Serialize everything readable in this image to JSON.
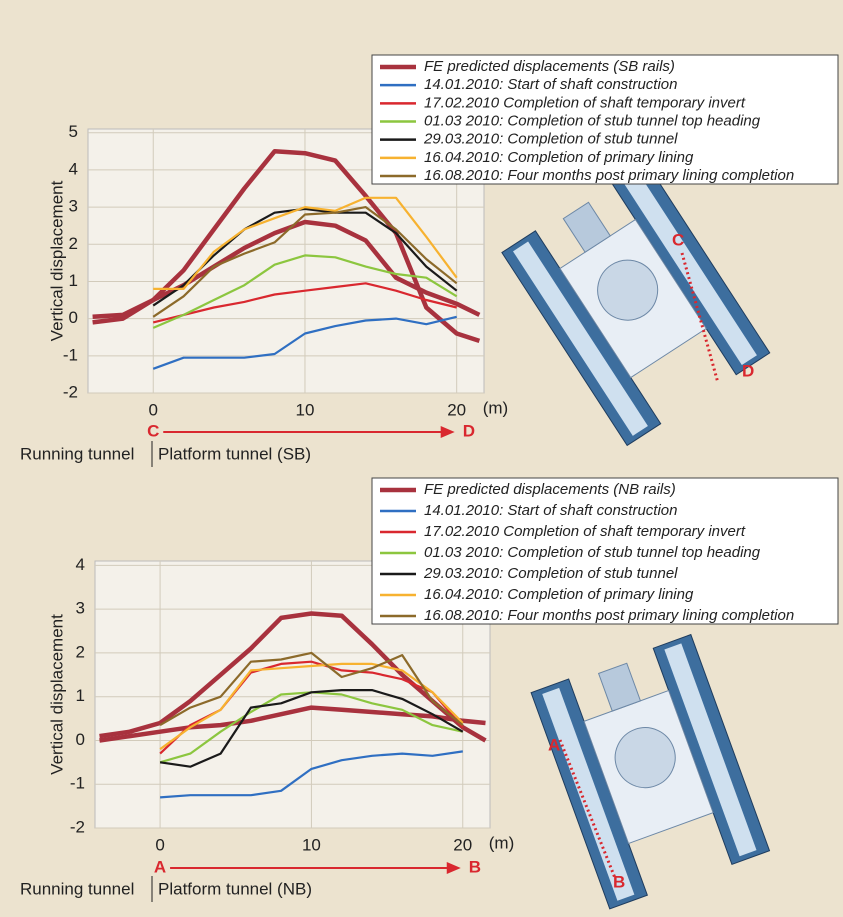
{
  "chart_data": [
    {
      "type": "line",
      "y_label": "Vertical displacement",
      "x_unit": "(m)",
      "arrow_start_label": "C",
      "arrow_end_label": "D",
      "left_label": "Running tunnel",
      "right_label": "Platform tunnel (SB)",
      "diagram_top_label": "C",
      "diagram_bottom_label": "D",
      "xlim": [
        -4.3,
        21.8
      ],
      "xticks": [
        0,
        10,
        20
      ],
      "ylim": [
        -2,
        5.1
      ],
      "yticks": [
        -2,
        -1,
        0,
        1,
        2,
        3,
        4,
        5
      ],
      "grid": true,
      "x": [
        -4,
        -2,
        0,
        2,
        4,
        6,
        8,
        10,
        12,
        14,
        16,
        18,
        20,
        21.5
      ],
      "series": [
        {
          "name": "FE predicted displacements (SB rails)",
          "color": "#a8323e",
          "values": [
            -0.1,
            0.0,
            0.5,
            1.3,
            2.4,
            3.5,
            4.5,
            4.45,
            4.25,
            3.3,
            2.3,
            0.3,
            -0.4,
            -0.6
          ]
        },
        {
          "name": "FE predicted displacements (SB rails)",
          "color": "#a8323e",
          "values": [
            0.05,
            0.1,
            0.5,
            0.9,
            1.4,
            1.9,
            2.3,
            2.6,
            2.5,
            2.1,
            1.1,
            0.7,
            0.4,
            0.1
          ]
        },
        {
          "name": "14.01.2010: Start of shaft construction",
          "color": "#2f6fc2",
          "values": [
            null,
            null,
            -1.35,
            -1.05,
            -1.05,
            -1.05,
            -0.95,
            -0.4,
            -0.2,
            -0.05,
            0.0,
            -0.15,
            0.05,
            null
          ]
        },
        {
          "name": "17.02.2010 Completion of shaft temporary invert",
          "color": "#d9282f",
          "values": [
            null,
            null,
            -0.1,
            0.1,
            0.3,
            0.45,
            0.65,
            0.75,
            0.85,
            0.95,
            0.75,
            0.5,
            0.3,
            null
          ]
        },
        {
          "name": "01.03 2010: Completion of stub tunnel top heading",
          "color": "#8cc63f",
          "values": [
            null,
            null,
            -0.25,
            0.1,
            0.5,
            0.9,
            1.45,
            1.7,
            1.65,
            1.4,
            1.2,
            1.1,
            0.6,
            null
          ]
        },
        {
          "name": "29.03.2010: Completion of stub tunnel",
          "color": "#1a1a1a",
          "values": [
            null,
            null,
            0.35,
            0.9,
            1.7,
            2.4,
            2.85,
            2.95,
            2.85,
            2.85,
            2.3,
            1.4,
            0.75,
            null
          ]
        },
        {
          "name": "16.04.2010: Completion of primary lining",
          "color": "#f7b230",
          "values": [
            null,
            null,
            0.8,
            0.8,
            1.8,
            2.4,
            2.7,
            3.0,
            2.9,
            3.25,
            3.25,
            2.2,
            1.1,
            null
          ]
        },
        {
          "name": "16.08.2010: Four months post primary lining completion",
          "color": "#8c6a2a",
          "values": [
            null,
            null,
            0.05,
            0.6,
            1.4,
            1.75,
            2.05,
            2.8,
            2.85,
            3.0,
            2.4,
            1.6,
            0.95,
            null
          ]
        }
      ]
    },
    {
      "type": "line",
      "y_label": "Vertical displacement",
      "x_unit": "(m)",
      "arrow_start_label": "A",
      "arrow_end_label": "B",
      "left_label": "Running tunnel",
      "right_label": "Platform tunnel (NB)",
      "diagram_top_label": "A",
      "diagram_bottom_label": "B",
      "xlim": [
        -4.3,
        21.8
      ],
      "xticks": [
        0,
        10,
        20
      ],
      "ylim": [
        -2,
        4.1
      ],
      "yticks": [
        -2,
        -1,
        0,
        1,
        2,
        3,
        4
      ],
      "grid": true,
      "x": [
        -4,
        -2,
        0,
        2,
        4,
        6,
        8,
        10,
        12,
        14,
        16,
        18,
        20,
        21.5
      ],
      "series": [
        {
          "name": "FE predicted displacements (NB rails)",
          "color": "#a8323e",
          "values": [
            0.1,
            0.2,
            0.4,
            0.9,
            1.5,
            2.1,
            2.8,
            2.9,
            2.85,
            2.2,
            1.5,
            0.9,
            0.3,
            0.0
          ]
        },
        {
          "name": "FE predicted displacements (NB rails)",
          "color": "#a8323e",
          "values": [
            0.0,
            0.1,
            0.2,
            0.3,
            0.35,
            0.45,
            0.6,
            0.75,
            0.7,
            0.65,
            0.6,
            0.55,
            0.45,
            0.4
          ]
        },
        {
          "name": "14.01.2010: Start of shaft construction",
          "color": "#2f6fc2",
          "values": [
            null,
            null,
            -1.3,
            -1.25,
            -1.25,
            -1.25,
            -1.15,
            -0.65,
            -0.45,
            -0.35,
            -0.3,
            -0.35,
            -0.25,
            null
          ]
        },
        {
          "name": "17.02.2010 Completion of shaft temporary invert",
          "color": "#d9282f",
          "values": [
            null,
            null,
            -0.3,
            0.35,
            0.7,
            1.55,
            1.75,
            1.8,
            1.6,
            1.55,
            1.4,
            1.1,
            0.3,
            null
          ]
        },
        {
          "name": "01.03 2010: Completion of stub tunnel top heading",
          "color": "#8cc63f",
          "values": [
            null,
            null,
            -0.5,
            -0.3,
            0.2,
            0.65,
            1.05,
            1.1,
            1.05,
            0.85,
            0.7,
            0.35,
            0.2,
            null
          ]
        },
        {
          "name": "29.03.2010: Completion of stub tunnel",
          "color": "#1a1a1a",
          "values": [
            null,
            null,
            -0.5,
            -0.6,
            -0.3,
            0.75,
            0.85,
            1.1,
            1.15,
            1.15,
            0.95,
            0.6,
            0.2,
            null
          ]
        },
        {
          "name": "16.04.2010: Completion of primary lining",
          "color": "#f7b230",
          "values": [
            null,
            null,
            -0.2,
            0.3,
            0.7,
            1.6,
            1.65,
            1.7,
            1.75,
            1.75,
            1.6,
            1.1,
            0.4,
            null
          ]
        },
        {
          "name": "16.08.2010: Four months post primary lining completion",
          "color": "#8c6a2a",
          "values": [
            null,
            null,
            0.35,
            0.75,
            1.0,
            1.8,
            1.85,
            2.0,
            1.45,
            1.65,
            1.95,
            0.9,
            0.35,
            null
          ]
        }
      ]
    }
  ]
}
